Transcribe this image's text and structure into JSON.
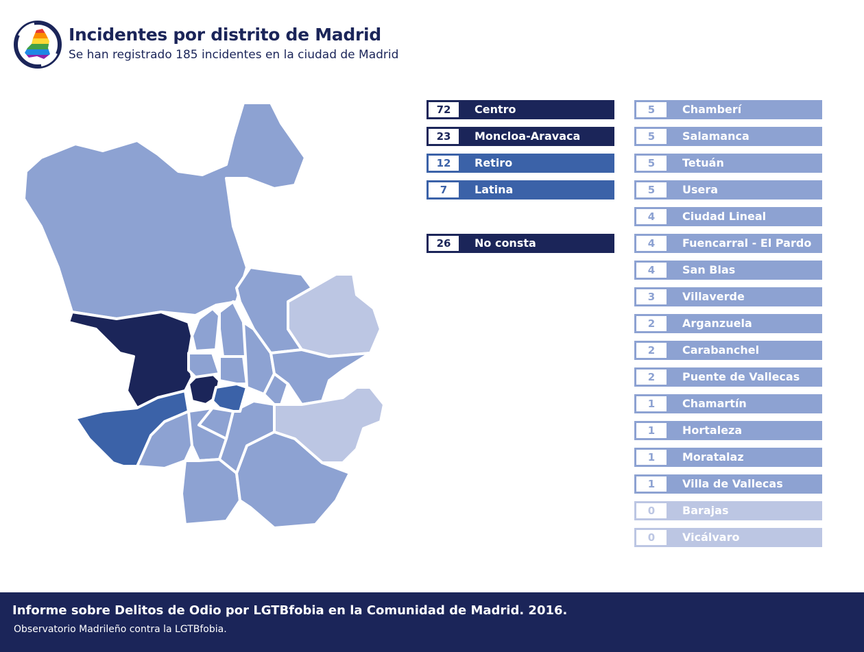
{
  "header": {
    "title": "Incidentes por distrito de Madrid",
    "subtitle": "Se han registrado 185 incidentes en la ciudad de Madrid"
  },
  "colors": {
    "navy": "#1b2559",
    "blue": "#3b62a8",
    "light": "#8da2d2",
    "pale": "#bcc6e3"
  },
  "chart_data": {
    "type": "table",
    "title": "Incidentes por distrito de Madrid",
    "total": 185,
    "highlighted": [
      {
        "name": "Centro",
        "value": 72,
        "level": "navy"
      },
      {
        "name": "Moncloa-Aravaca",
        "value": 23,
        "level": "navy"
      },
      {
        "name": "Retiro",
        "value": 12,
        "level": "blue"
      },
      {
        "name": "Latina",
        "value": 7,
        "level": "blue"
      },
      {
        "name": "No consta",
        "value": 26,
        "level": "navy"
      }
    ],
    "others": [
      {
        "name": "Chamberí",
        "value": 5,
        "level": "light"
      },
      {
        "name": "Salamanca",
        "value": 5,
        "level": "light"
      },
      {
        "name": "Tetuán",
        "value": 5,
        "level": "light"
      },
      {
        "name": "Usera",
        "value": 5,
        "level": "light"
      },
      {
        "name": "Ciudad Lineal",
        "value": 4,
        "level": "light"
      },
      {
        "name": "Fuencarral - El Pardo",
        "value": 4,
        "level": "light"
      },
      {
        "name": "San Blas",
        "value": 4,
        "level": "light"
      },
      {
        "name": "Villaverde",
        "value": 3,
        "level": "light"
      },
      {
        "name": "Arganzuela",
        "value": 2,
        "level": "light"
      },
      {
        "name": "Carabanchel",
        "value": 2,
        "level": "light"
      },
      {
        "name": "Puente de Vallecas",
        "value": 2,
        "level": "light"
      },
      {
        "name": "Chamartín",
        "value": 1,
        "level": "light"
      },
      {
        "name": "Hortaleza",
        "value": 1,
        "level": "light"
      },
      {
        "name": "Moratalaz",
        "value": 1,
        "level": "light"
      },
      {
        "name": "Villa de Vallecas",
        "value": 1,
        "level": "light"
      },
      {
        "name": "Barajas",
        "value": 0,
        "level": "pale"
      },
      {
        "name": "Vicálvaro",
        "value": 0,
        "level": "pale"
      }
    ]
  },
  "footer": {
    "title": "Informe sobre Delitos de Odio por LGTBfobia en la Comunidad de Madrid. 2016.",
    "org": "Observatorio Madrileño contra la LGTBfobia."
  }
}
